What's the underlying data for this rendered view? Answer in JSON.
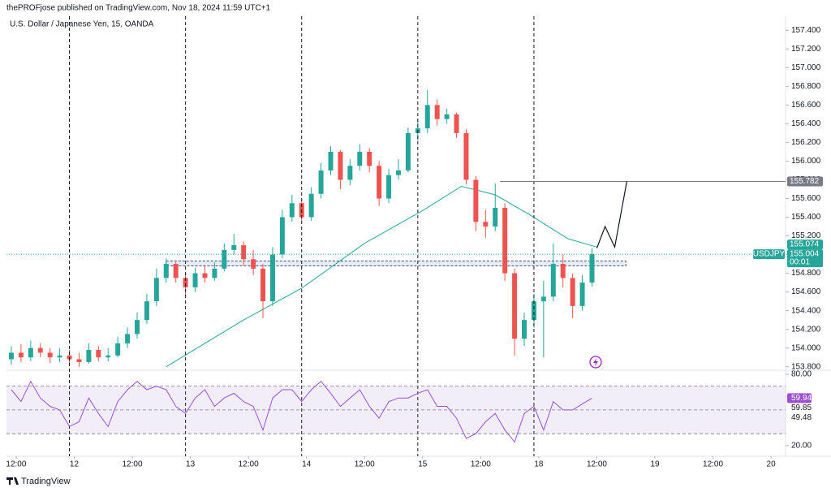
{
  "header": {
    "publisher": "thePROFjose published on TradingView.com, Nov 18, 2024 11:59 UTC+1",
    "footer": "TradingView"
  },
  "chart_data": [
    {
      "type": "candlestick",
      "title": "U.S. Dollar / Japanese Yen, 15, OANDA",
      "symbol": "USDJPY",
      "countdown": "00:01",
      "up_color": "#26a69a",
      "down_color": "#ef5350",
      "x": [
        -1,
        1,
        3,
        5,
        7,
        9,
        11,
        13,
        15,
        17,
        19,
        21,
        23,
        25,
        27,
        29,
        31,
        33,
        35,
        37,
        39,
        41,
        43,
        45,
        47,
        49,
        51,
        53,
        55,
        57,
        59,
        61,
        63,
        65,
        67,
        69,
        71,
        73,
        75,
        77,
        79,
        81,
        83,
        85,
        87,
        89,
        91,
        93,
        95,
        97,
        99,
        101,
        103,
        105,
        107,
        109,
        111,
        113,
        115,
        117,
        119
      ],
      "open": [
        153.88,
        153.95,
        153.9,
        154.0,
        153.95,
        153.9,
        153.92,
        153.88,
        153.85,
        153.98,
        153.9,
        153.92,
        154.05,
        154.15,
        154.3,
        154.5,
        154.75,
        154.9,
        154.75,
        154.65,
        154.8,
        154.75,
        154.85,
        155.05,
        155.1,
        154.95,
        154.85,
        154.5,
        155.0,
        155.4,
        155.55,
        155.4,
        155.65,
        155.9,
        156.1,
        155.8,
        155.95,
        156.1,
        155.95,
        155.6,
        155.85,
        155.9,
        156.3,
        156.35,
        156.6,
        156.45,
        156.5,
        156.3,
        155.8,
        155.35,
        155.3,
        155.5,
        154.8,
        154.1,
        154.3,
        154.5,
        154.55,
        154.9,
        154.75,
        154.45,
        154.7
      ],
      "high": [
        154.02,
        154.04,
        154.08,
        154.05,
        154.0,
        154.0,
        153.98,
        153.95,
        154.05,
        154.02,
        154.0,
        154.12,
        154.22,
        154.38,
        154.58,
        154.85,
        154.96,
        154.92,
        154.8,
        154.86,
        154.88,
        154.92,
        155.12,
        155.22,
        155.14,
        155.05,
        154.9,
        155.08,
        155.48,
        155.64,
        155.6,
        155.72,
        155.98,
        156.16,
        156.12,
        156.02,
        156.18,
        156.14,
        156.0,
        155.92,
        156.02,
        156.36,
        156.45,
        156.76,
        156.66,
        156.56,
        156.52,
        156.34,
        155.84,
        155.48,
        155.76,
        155.55,
        154.85,
        154.38,
        154.58,
        154.72,
        155.12,
        155.0,
        154.8,
        154.78,
        155.07
      ],
      "low": [
        153.82,
        153.85,
        153.86,
        153.9,
        153.84,
        153.85,
        153.82,
        153.8,
        153.83,
        153.86,
        153.86,
        153.9,
        154.0,
        154.1,
        154.26,
        154.45,
        154.7,
        154.7,
        154.55,
        154.6,
        154.7,
        154.72,
        154.82,
        155.0,
        154.88,
        154.78,
        154.32,
        154.45,
        154.96,
        155.35,
        155.35,
        155.36,
        155.6,
        155.85,
        155.7,
        155.74,
        155.9,
        155.88,
        155.52,
        155.55,
        155.8,
        155.88,
        156.22,
        156.3,
        156.38,
        156.4,
        156.25,
        155.75,
        155.25,
        155.18,
        155.25,
        154.72,
        153.92,
        154.02,
        154.22,
        153.9,
        154.5,
        154.65,
        154.32,
        154.4,
        154.66
      ],
      "close": [
        153.95,
        153.9,
        154.0,
        153.95,
        153.9,
        153.92,
        153.88,
        153.85,
        153.98,
        153.9,
        153.92,
        154.05,
        154.15,
        154.3,
        154.5,
        154.75,
        154.9,
        154.75,
        154.65,
        154.8,
        154.75,
        154.85,
        155.05,
        155.1,
        154.95,
        154.85,
        154.5,
        155.0,
        155.4,
        155.55,
        155.4,
        155.65,
        155.9,
        156.1,
        155.8,
        155.95,
        156.1,
        155.95,
        155.6,
        155.85,
        155.9,
        156.3,
        156.35,
        156.6,
        156.45,
        156.5,
        156.3,
        155.8,
        155.35,
        155.3,
        155.5,
        154.8,
        154.1,
        154.3,
        154.5,
        154.55,
        154.9,
        154.75,
        154.45,
        154.7,
        155.004
      ],
      "xlim": [
        -2,
        159
      ],
      "xticks": [
        {
          "value": 0,
          "label": "12:00"
        },
        {
          "value": 12,
          "label": "12"
        },
        {
          "value": 24,
          "label": "12:00"
        },
        {
          "value": 36,
          "label": "13"
        },
        {
          "value": 48,
          "label": "12:00"
        },
        {
          "value": 60,
          "label": "14"
        },
        {
          "value": 72,
          "label": "12:00"
        },
        {
          "value": 84,
          "label": "15"
        },
        {
          "value": 96,
          "label": "12:00"
        },
        {
          "value": 108,
          "label": "18"
        },
        {
          "value": 120,
          "label": "12:00"
        },
        {
          "value": 132,
          "label": "19"
        },
        {
          "value": 144,
          "label": "12:00"
        },
        {
          "value": 156,
          "label": "20"
        }
      ],
      "ylim": [
        153.78,
        157.55
      ],
      "yticks": [
        {
          "value": 153.8,
          "label": "153.800"
        },
        {
          "value": 154.0,
          "label": "154.000"
        },
        {
          "value": 154.2,
          "label": "154.200"
        },
        {
          "value": 154.4,
          "label": "154.400"
        },
        {
          "value": 154.6,
          "label": "154.600"
        },
        {
          "value": 154.8,
          "label": "154.800"
        },
        {
          "value": 155.0,
          "label": "155.000"
        },
        {
          "value": 155.2,
          "label": "155.200"
        },
        {
          "value": 155.4,
          "label": "155.400"
        },
        {
          "value": 155.6,
          "label": "155.600"
        },
        {
          "value": 155.8,
          "label": "155.800"
        },
        {
          "value": 156.0,
          "label": "156.000"
        },
        {
          "value": 156.2,
          "label": "156.200"
        },
        {
          "value": 156.4,
          "label": "156.400"
        },
        {
          "value": 156.6,
          "label": "156.600"
        },
        {
          "value": 156.8,
          "label": "156.800"
        },
        {
          "value": 157.0,
          "label": "157.000"
        },
        {
          "value": 157.2,
          "label": "157.200"
        },
        {
          "value": 157.4,
          "label": "157.400"
        }
      ],
      "ma": {
        "color": "#26a69a",
        "x": [
          31,
          47,
          59,
          72,
          84,
          92,
          99,
          106,
          114,
          120
        ],
        "values": [
          153.8,
          154.3,
          154.64,
          155.12,
          155.47,
          155.73,
          155.64,
          155.43,
          155.17,
          155.08
        ]
      },
      "projection": {
        "color": "#131722",
        "x": [
          120,
          121.7,
          123.7,
          126.2
        ],
        "values": [
          155.07,
          155.3,
          155.08,
          155.782
        ]
      },
      "level": {
        "value": 155.782,
        "x_start": 100,
        "color": "#787b86"
      },
      "zone": {
        "x": [
          31,
          126
        ],
        "values": [
          154.88,
          154.93
        ]
      },
      "separators": [
        11,
        35,
        59,
        83,
        107
      ],
      "last_price": 155.004,
      "price_labels": [
        155.074,
        155.004
      ]
    },
    {
      "type": "line",
      "series": [
        {
          "color": "#9c4fd1",
          "x": [
            -1,
            1,
            3,
            5,
            7,
            9,
            11,
            13,
            15,
            17,
            19,
            21,
            23,
            25,
            27,
            29,
            31,
            33,
            35,
            37,
            39,
            41,
            43,
            45,
            47,
            49,
            51,
            53,
            55,
            57,
            59,
            61,
            63,
            65,
            67,
            69,
            71,
            73,
            75,
            77,
            79,
            81,
            83,
            85,
            87,
            89,
            91,
            93,
            95,
            97,
            99,
            101,
            103,
            105,
            107,
            109,
            111,
            113,
            115,
            117,
            119
          ],
          "values": [
            67,
            57,
            74,
            60,
            53,
            50,
            36,
            40,
            60,
            47,
            36,
            57,
            67,
            74,
            67,
            70,
            67,
            53,
            47,
            60,
            67,
            53,
            60,
            64,
            57,
            53,
            33,
            60,
            67,
            67,
            57,
            67,
            74,
            64,
            53,
            60,
            67,
            53,
            43,
            57,
            60,
            60,
            64,
            67,
            53,
            53,
            43,
            26,
            30,
            40,
            47,
            33,
            23,
            47,
            53,
            33,
            57,
            50,
            50,
            55,
            59.94
          ]
        }
      ],
      "xlim": [
        -2,
        159
      ],
      "ylim": [
        11,
        82.7
      ],
      "yticks": [
        {
          "value": 80,
          "label": "80.00"
        },
        {
          "value": 20,
          "label": "20.00"
        }
      ],
      "bands": [
        70,
        50,
        30
      ],
      "value_labels": [
        59.94,
        59.85,
        49.48
      ]
    }
  ]
}
